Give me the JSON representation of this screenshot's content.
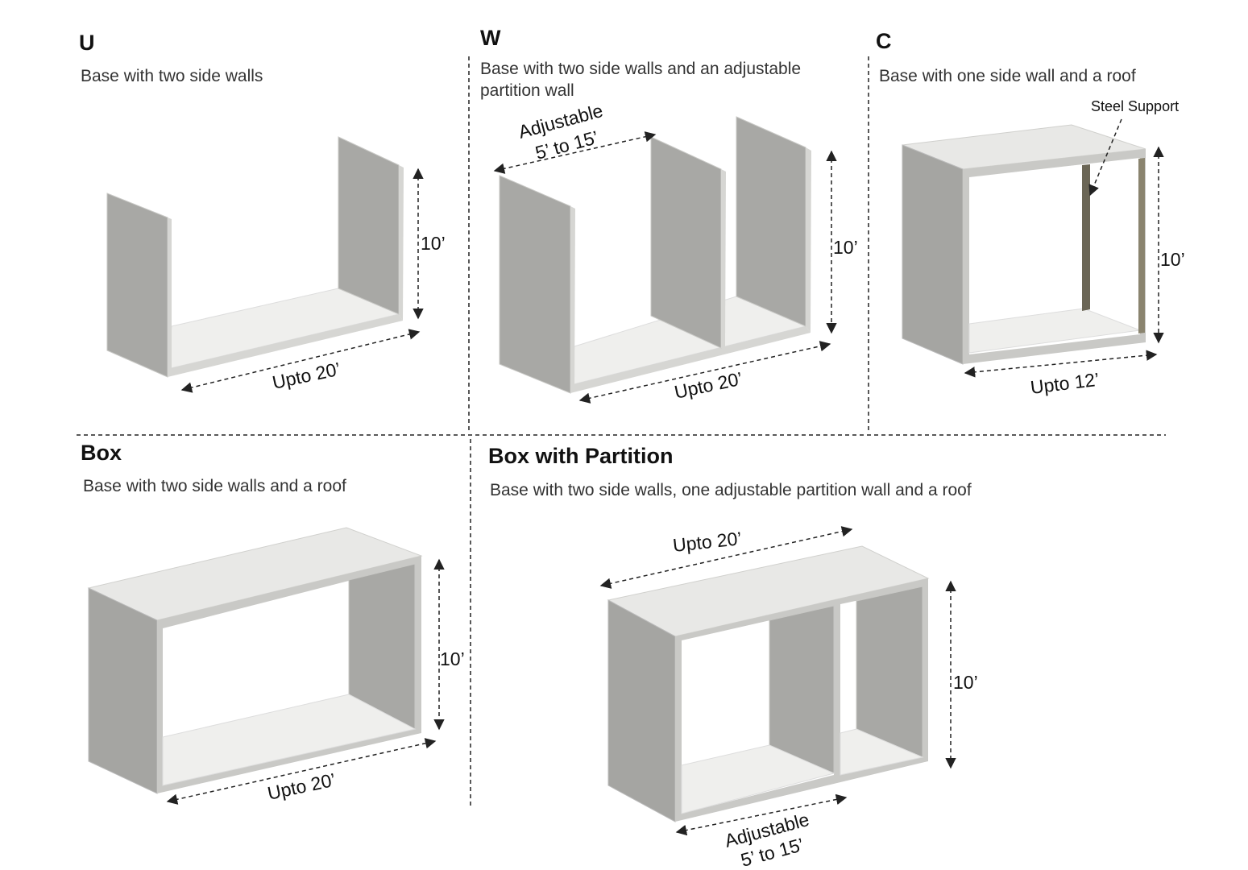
{
  "panels": [
    {
      "title": "U",
      "description": "Base with two side walls",
      "height_label": "10’",
      "length_label": "Upto 20’"
    },
    {
      "title": "W",
      "description": "Base with two side walls and an adjustable partition wall",
      "partition_label": "Adjustable",
      "partition_range": "5’ to 15’",
      "height_label": "10’",
      "length_label": "Upto 20’"
    },
    {
      "title": "C",
      "description": "Base with one side wall and a roof",
      "support_label": "Steel Support",
      "height_label": "10’",
      "length_label": "Upto 12’"
    },
    {
      "title": "Box",
      "description": "Base with two side walls and a roof",
      "height_label": "10’",
      "length_label": "Upto 20’"
    },
    {
      "title": "Box with Partition",
      "description": "Base with two side walls, one adjustable partition wall and a roof",
      "length_label": "Upto 20’",
      "height_label": "10’",
      "partition_label": "Adjustable",
      "partition_range": "5’ to 15’"
    }
  ]
}
